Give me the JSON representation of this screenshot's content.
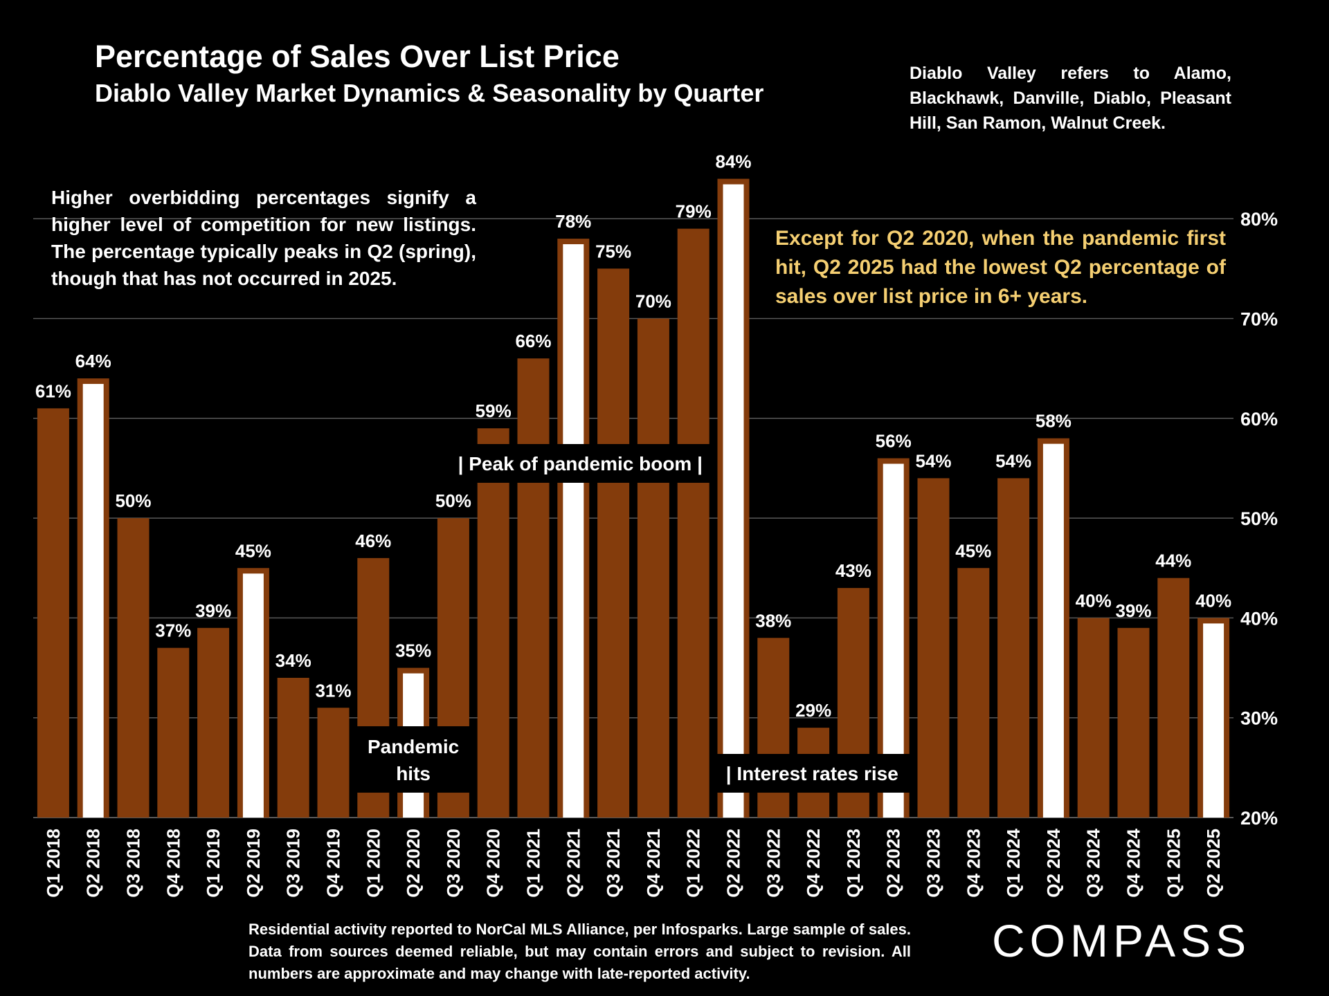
{
  "header": {
    "title": "Percentage of Sales Over List Price",
    "subtitle": "Diablo Valley Market Dynamics & Seasonality by Quarter",
    "region_note": "Diablo Valley refers to Alamo, Blackhawk, Danville, Diablo, Pleasant Hill, San Ramon, Walnut Creek."
  },
  "notes": {
    "left": "Higher overbidding percentages signify a higher level of competition for new listings. The percentage typically peaks in Q2 (spring), though that has not occurred in 2025.",
    "highlight": "Except for Q2 2020, when the pandemic first hit, Q2 2025 had the lowest Q2 percentage of sales over list price in 6+ years."
  },
  "footer": {
    "source": "Residential activity reported to NorCal MLS Alliance, per Infosparks. Large sample of sales. Data from sources deemed reliable, but may contain errors and subject to revision. All numbers are approximate and may change with late-reported activity.",
    "logo_text": "COMPASS"
  },
  "colors": {
    "background": "#000000",
    "bar": "#843c0c",
    "q2_fill": "#ffffff",
    "highlight_text": "#f5cf72",
    "gridline": "#595959"
  },
  "chart_data": {
    "type": "bar",
    "categories": [
      "Q1 2018",
      "Q2 2018",
      "Q3 2018",
      "Q4 2018",
      "Q1 2019",
      "Q2 2019",
      "Q3 2019",
      "Q4 2019",
      "Q1 2020",
      "Q2 2020",
      "Q3 2020",
      "Q4 2020",
      "Q1 2021",
      "Q2 2021",
      "Q3 2021",
      "Q4 2021",
      "Q1 2022",
      "Q2 2022",
      "Q3 2022",
      "Q4 2022",
      "Q1 2023",
      "Q2 2023",
      "Q3 2023",
      "Q4 2023",
      "Q1 2024",
      "Q2 2024",
      "Q3 2024",
      "Q4 2024",
      "Q1 2025",
      "Q2 2025"
    ],
    "values": [
      61,
      64,
      50,
      37,
      39,
      45,
      34,
      31,
      46,
      35,
      50,
      59,
      66,
      78,
      75,
      70,
      79,
      84,
      38,
      29,
      43,
      56,
      54,
      45,
      54,
      58,
      40,
      39,
      44,
      40
    ],
    "value_labels": [
      "61%",
      "64%",
      "50%",
      "37%",
      "39%",
      "45%",
      "34%",
      "31%",
      "46%",
      "35%",
      "50%",
      "59%",
      "66%",
      "78%",
      "75%",
      "70%",
      "79%",
      "84%",
      "38%",
      "29%",
      "43%",
      "56%",
      "54%",
      "45%",
      "54%",
      "58%",
      "40%",
      "39%",
      "44%",
      "40%"
    ],
    "highlighted": [
      "Q2 2018",
      "Q2 2019",
      "Q2 2020",
      "Q2 2021",
      "Q2 2022",
      "Q2 2023",
      "Q2 2024",
      "Q2 2025"
    ],
    "ylim": [
      20,
      84
    ],
    "y_ticks": [
      20,
      30,
      40,
      50,
      60,
      70,
      80
    ],
    "y_tick_labels": [
      "20%",
      "30%",
      "40%",
      "50%",
      "60%",
      "70%",
      "80%"
    ],
    "y_axis_side": "right",
    "grid": true,
    "xlabel": "",
    "ylabel": "",
    "annotations": [
      {
        "text": "Pandemic hits",
        "lines": [
          "Pandemic",
          "hits"
        ],
        "category": "Q2 2020"
      },
      {
        "text": "| Peak of pandemic boom |",
        "category": "Q2 2021"
      },
      {
        "text": "| Interest rates rise",
        "category": "Q3 2022"
      }
    ]
  }
}
